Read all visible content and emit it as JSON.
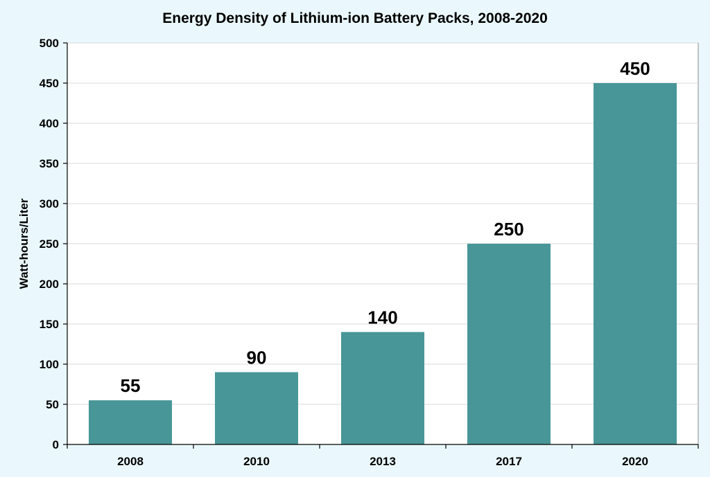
{
  "chart_data": {
    "type": "bar",
    "title": "Energy Density of Lithium-ion Battery Packs, 2008-2020",
    "xlabel": "",
    "ylabel": "Watt-hours/Liter",
    "categories": [
      "2008",
      "2010",
      "2013",
      "2017",
      "2020"
    ],
    "values": [
      55,
      90,
      140,
      250,
      450
    ],
    "data_labels": [
      "55",
      "90",
      "140",
      "250",
      "450"
    ],
    "ylim": [
      0,
      500
    ],
    "yticks": [
      0,
      50,
      100,
      150,
      200,
      250,
      300,
      350,
      400,
      450,
      500
    ],
    "ytick_labels": [
      "0",
      "50",
      "100",
      "150",
      "200",
      "250",
      "300",
      "350",
      "400",
      "450",
      "500"
    ],
    "grid": true,
    "legend": "none",
    "colors": {
      "bar": "#489698",
      "background": "#eaf8fd",
      "plot_background": "#ffffff"
    }
  }
}
